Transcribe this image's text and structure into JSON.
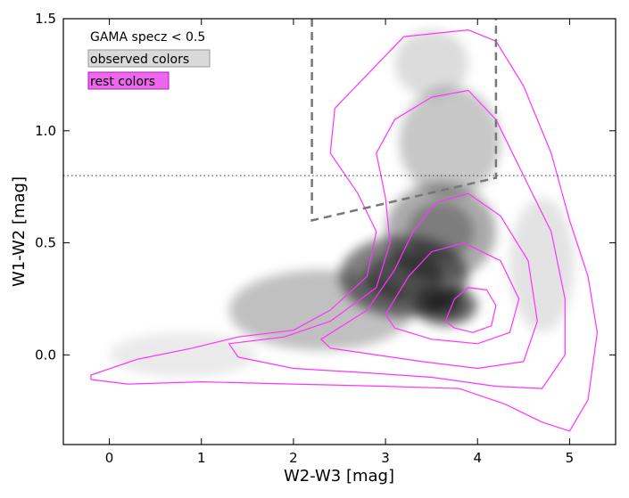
{
  "chart_data": {
    "type": "scatter",
    "title": "",
    "xlabel": "W2-W3 [mag]",
    "ylabel": "W1-W2 [mag]",
    "xlim": [
      -0.5,
      5.5
    ],
    "ylim": [
      -0.4,
      1.5
    ],
    "xticks": [
      0,
      1,
      2,
      3,
      4,
      5
    ],
    "yticks": [
      0.0,
      0.5,
      1.0,
      1.5
    ],
    "xtick_labels": [
      "0",
      "1",
      "2",
      "3",
      "4",
      "5"
    ],
    "ytick_labels": [
      "0.0",
      "0.5",
      "1.0",
      "1.5"
    ],
    "grid": false,
    "annotation": "GAMA specz < 0.5",
    "legend": {
      "placement": "top-left",
      "observed_label": "observed colors",
      "rest_label": "rest colors"
    },
    "colors": {
      "observed": "#000000",
      "observed_legend_bg": "#d9d9d9",
      "rest": "#ff33ff",
      "rest_legend_bg": "#ee66ee",
      "wedge": "#777777",
      "reference_line": "#333333"
    },
    "reference_line_y": 0.8,
    "agn_wedge": {
      "style": "dashed",
      "points": [
        [
          2.2,
          1.5
        ],
        [
          2.2,
          0.6
        ],
        [
          4.2,
          0.79
        ],
        [
          4.2,
          1.5
        ]
      ]
    },
    "observed_density": {
      "core": [
        3.65,
        0.22
      ],
      "blobs": [
        {
          "cx": 3.65,
          "cy": 0.22,
          "sx": 0.35,
          "sy": 0.09,
          "w": 1.0
        },
        {
          "cx": 3.2,
          "cy": 0.35,
          "sx": 0.7,
          "sy": 0.18,
          "w": 0.9
        },
        {
          "cx": 3.6,
          "cy": 0.55,
          "sx": 0.6,
          "sy": 0.22,
          "w": 0.6
        },
        {
          "cx": 2.3,
          "cy": 0.2,
          "sx": 1.0,
          "sy": 0.18,
          "w": 0.45
        },
        {
          "cx": 3.7,
          "cy": 0.95,
          "sx": 0.55,
          "sy": 0.25,
          "w": 0.4
        },
        {
          "cx": 3.5,
          "cy": 1.3,
          "sx": 0.4,
          "sy": 0.15,
          "w": 0.25
        },
        {
          "cx": 0.8,
          "cy": 0.0,
          "sx": 0.8,
          "sy": 0.1,
          "w": 0.15
        },
        {
          "cx": 4.7,
          "cy": 0.4,
          "sx": 0.35,
          "sy": 0.3,
          "w": 0.2
        }
      ]
    },
    "rest_contours": [
      {
        "level": 1,
        "points": [
          [
            -0.2,
            -0.09
          ],
          [
            0.3,
            -0.02
          ],
          [
            0.9,
            0.03
          ],
          [
            1.4,
            0.08
          ],
          [
            2.0,
            0.11
          ],
          [
            2.4,
            0.2
          ],
          [
            2.8,
            0.35
          ],
          [
            2.9,
            0.55
          ],
          [
            2.7,
            0.72
          ],
          [
            2.4,
            0.9
          ],
          [
            2.45,
            1.1
          ],
          [
            2.8,
            1.25
          ],
          [
            3.2,
            1.42
          ],
          [
            3.9,
            1.45
          ],
          [
            4.2,
            1.4
          ],
          [
            4.5,
            1.2
          ],
          [
            4.8,
            0.9
          ],
          [
            5.0,
            0.6
          ],
          [
            5.2,
            0.35
          ],
          [
            5.3,
            0.1
          ],
          [
            5.2,
            -0.2
          ],
          [
            5.0,
            -0.34
          ],
          [
            4.7,
            -0.3
          ],
          [
            4.3,
            -0.22
          ],
          [
            3.8,
            -0.15
          ],
          [
            3.0,
            -0.14
          ],
          [
            2.0,
            -0.13
          ],
          [
            1.0,
            -0.12
          ],
          [
            0.2,
            -0.13
          ],
          [
            -0.2,
            -0.11
          ]
        ]
      },
      {
        "level": 2,
        "points": [
          [
            1.3,
            0.05
          ],
          [
            1.9,
            0.08
          ],
          [
            2.4,
            0.15
          ],
          [
            2.9,
            0.3
          ],
          [
            3.05,
            0.5
          ],
          [
            3.0,
            0.7
          ],
          [
            2.9,
            0.9
          ],
          [
            3.1,
            1.05
          ],
          [
            3.5,
            1.15
          ],
          [
            3.9,
            1.18
          ],
          [
            4.2,
            1.05
          ],
          [
            4.5,
            0.8
          ],
          [
            4.8,
            0.55
          ],
          [
            4.95,
            0.25
          ],
          [
            4.95,
            0.0
          ],
          [
            4.7,
            -0.15
          ],
          [
            4.2,
            -0.14
          ],
          [
            3.5,
            -0.1
          ],
          [
            2.8,
            -0.08
          ],
          [
            2.0,
            -0.06
          ],
          [
            1.4,
            -0.01
          ]
        ]
      },
      {
        "level": 3,
        "points": [
          [
            2.3,
            0.07
          ],
          [
            2.8,
            0.2
          ],
          [
            3.1,
            0.38
          ],
          [
            3.3,
            0.55
          ],
          [
            3.55,
            0.68
          ],
          [
            3.9,
            0.72
          ],
          [
            4.25,
            0.62
          ],
          [
            4.55,
            0.42
          ],
          [
            4.65,
            0.15
          ],
          [
            4.5,
            -0.03
          ],
          [
            4.0,
            -0.06
          ],
          [
            3.4,
            -0.03
          ],
          [
            2.9,
            0.0
          ],
          [
            2.4,
            0.03
          ]
        ]
      },
      {
        "level": 4,
        "points": [
          [
            3.0,
            0.18
          ],
          [
            3.25,
            0.35
          ],
          [
            3.5,
            0.46
          ],
          [
            3.85,
            0.5
          ],
          [
            4.25,
            0.42
          ],
          [
            4.45,
            0.25
          ],
          [
            4.35,
            0.1
          ],
          [
            4.0,
            0.05
          ],
          [
            3.5,
            0.07
          ],
          [
            3.1,
            0.12
          ]
        ]
      },
      {
        "level": 5,
        "points": [
          [
            3.65,
            0.15
          ],
          [
            3.75,
            0.25
          ],
          [
            3.9,
            0.3
          ],
          [
            4.1,
            0.29
          ],
          [
            4.2,
            0.22
          ],
          [
            4.15,
            0.13
          ],
          [
            3.95,
            0.1
          ],
          [
            3.75,
            0.12
          ]
        ]
      }
    ]
  }
}
